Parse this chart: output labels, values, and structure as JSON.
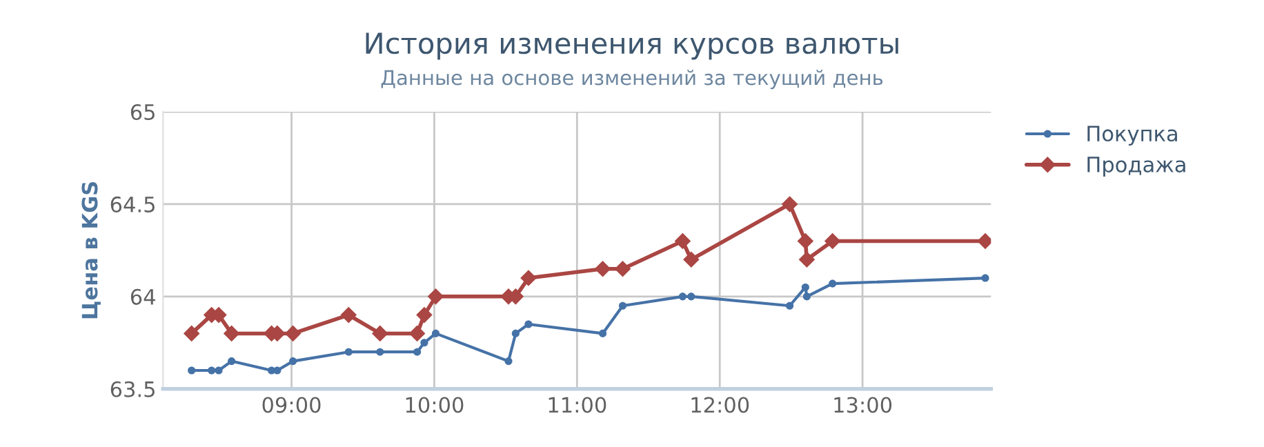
{
  "chart_data": {
    "type": "line",
    "title": "История изменения курсов валюты",
    "subtitle": "Данные на основе изменений за текущий день",
    "ylabel": "Цена в KGS",
    "xlim": [
      8.1,
      13.9
    ],
    "xticks": [
      {
        "value": 9,
        "label": "09:00"
      },
      {
        "value": 10,
        "label": "10:00"
      },
      {
        "value": 11,
        "label": "11:00"
      },
      {
        "value": 12,
        "label": "12:00"
      },
      {
        "value": 13,
        "label": "13:00"
      }
    ],
    "ylim": [
      63.5,
      65
    ],
    "yticks": [
      63.5,
      64,
      64.5,
      65
    ],
    "grid": true,
    "legend": "top right",
    "line_style": "solid",
    "series": [
      {
        "name": "Покупка",
        "color": "#4572a7",
        "marker": "circle",
        "x": [
          8.3,
          8.44,
          8.49,
          8.58,
          8.86,
          8.9,
          9.01,
          9.4,
          9.62,
          9.88,
          9.93,
          10.01,
          10.52,
          10.57,
          10.66,
          11.18,
          11.32,
          11.74,
          11.8,
          12.49,
          12.6,
          12.61,
          12.79,
          13.86
        ],
        "values": [
          63.6,
          63.6,
          63.6,
          63.65,
          63.6,
          63.6,
          63.65,
          63.7,
          63.7,
          63.7,
          63.75,
          63.8,
          63.65,
          63.8,
          63.85,
          63.8,
          63.95,
          64.0,
          64.0,
          63.95,
          64.05,
          64.0,
          64.07,
          64.1
        ]
      },
      {
        "name": "Продажа",
        "color": "#aa4643",
        "marker": "diamond",
        "x": [
          8.3,
          8.44,
          8.49,
          8.58,
          8.86,
          8.9,
          9.01,
          9.4,
          9.62,
          9.88,
          9.93,
          10.01,
          10.52,
          10.57,
          10.66,
          11.18,
          11.32,
          11.74,
          11.8,
          12.49,
          12.6,
          12.61,
          12.79,
          13.86
        ],
        "values": [
          63.8,
          63.9,
          63.9,
          63.8,
          63.8,
          63.8,
          63.8,
          63.9,
          63.8,
          63.8,
          63.9,
          64.0,
          64.0,
          64.0,
          64.1,
          64.15,
          64.15,
          64.3,
          64.2,
          64.5,
          64.3,
          64.2,
          64.3,
          64.3
        ]
      }
    ]
  }
}
